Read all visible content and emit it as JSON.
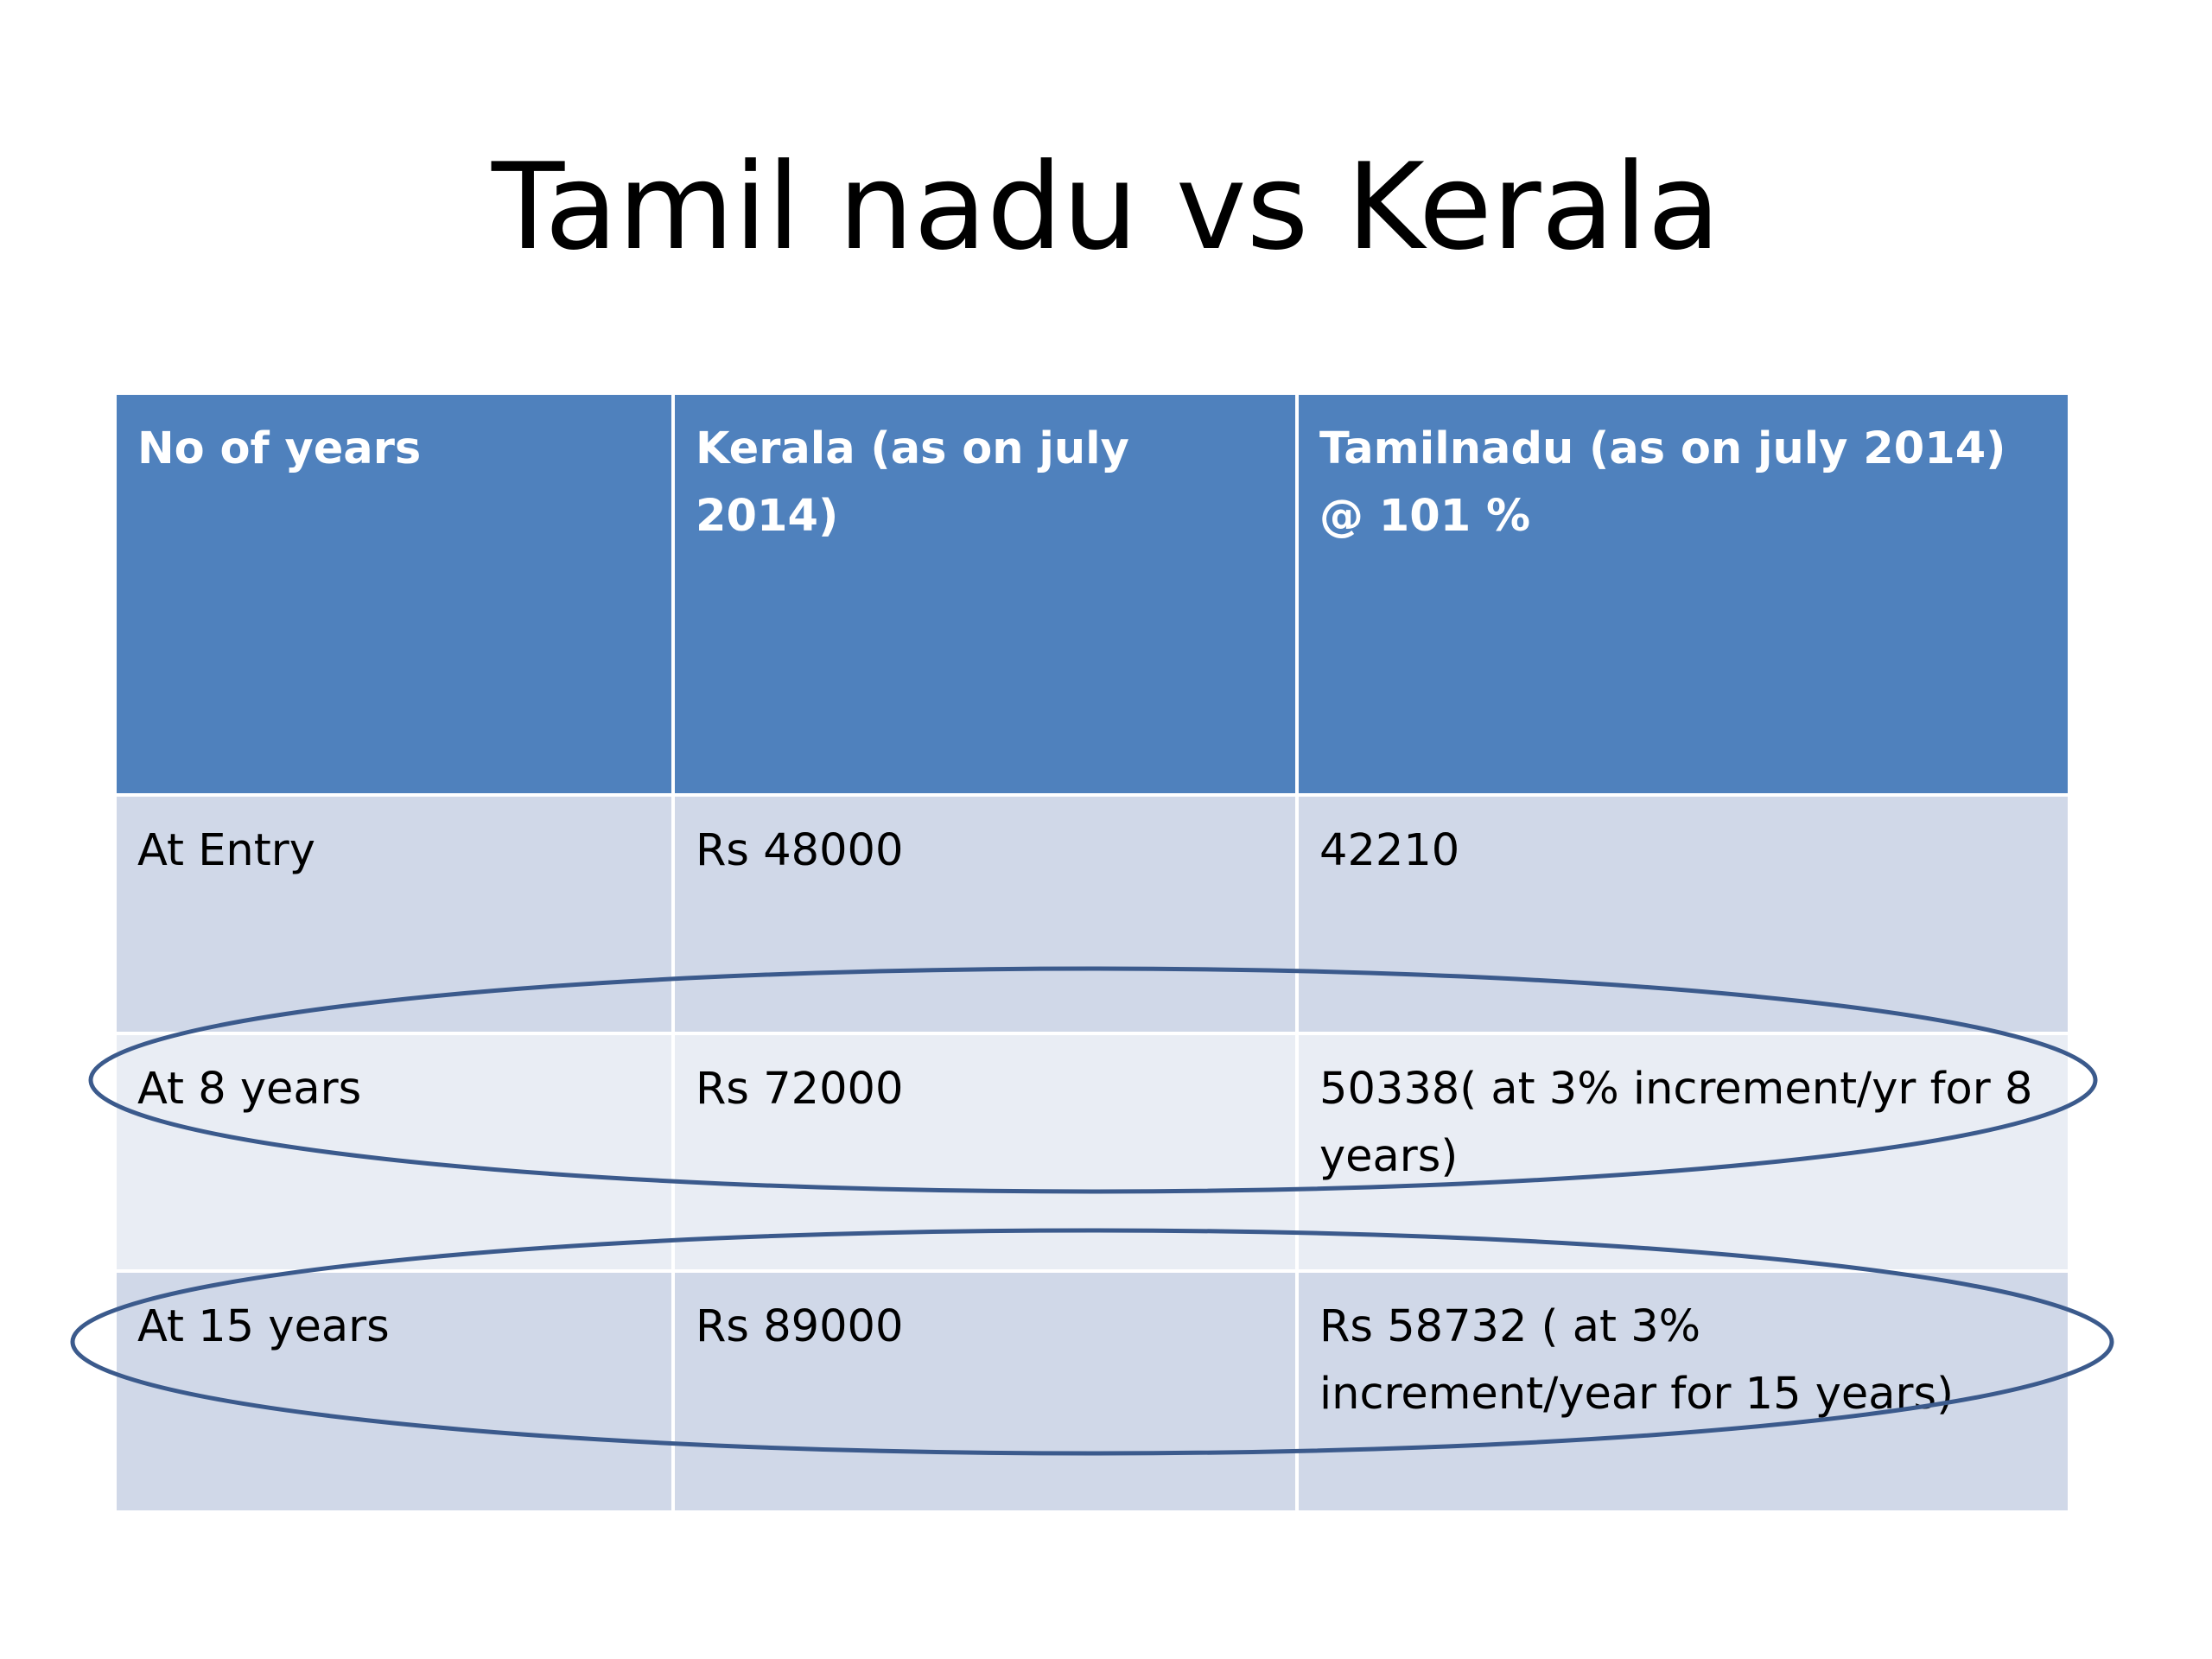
{
  "slide": {
    "title": "Tamil nadu vs Kerala"
  },
  "table": {
    "headers": [
      "No  of years",
      "Kerala (as on july 2014)",
      "Tamilnadu  (as on july 2014) @ 101 %"
    ],
    "rows": [
      [
        "At Entry",
        "Rs 48000",
        "42210"
      ],
      [
        "At 8 years",
        "Rs 72000",
        "50338( at 3% increment/yr for 8 years)"
      ],
      [
        "At 15 years",
        "Rs 89000",
        "Rs 58732 ( at 3% increment/year for 15 years)"
      ]
    ]
  },
  "colors": {
    "header_fill": "#4f81bd",
    "band_dark": "#d0d8e8",
    "band_light": "#e9edf4",
    "ellipse_stroke": "#3b5a8c"
  }
}
